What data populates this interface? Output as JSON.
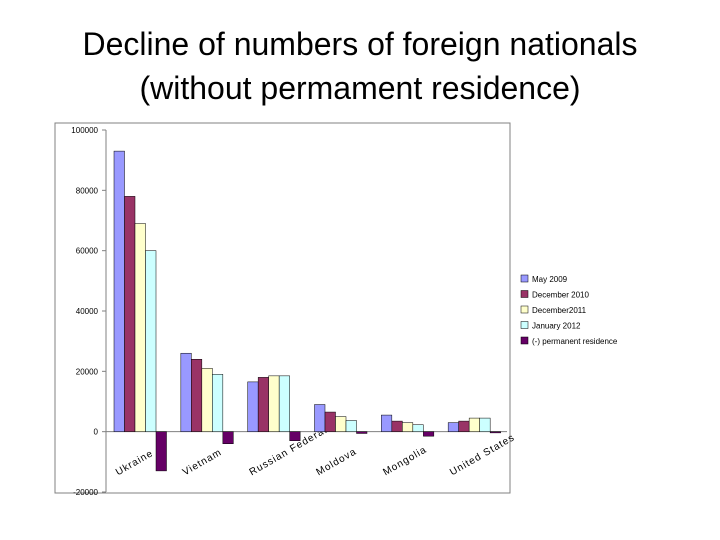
{
  "slide": {
    "title_line1": "Decline of numbers of foreign nationals",
    "title_line2": "(without permament residence)"
  },
  "chart_data": {
    "type": "bar",
    "title": "",
    "xlabel": "",
    "ylabel": "",
    "ylim": [
      -20000,
      100000
    ],
    "yticks": [
      100000,
      80000,
      60000,
      40000,
      20000,
      0,
      -20000
    ],
    "grid": false,
    "legend_position": "right",
    "categories": [
      "Ukraine",
      "Vietnam",
      "Russian Federation",
      "Moldova",
      "Mongolia",
      "United States"
    ],
    "series": [
      {
        "name": "May 2009",
        "color": "#9999ff",
        "values": [
          93000,
          26000,
          16500,
          9000,
          5500,
          3000
        ]
      },
      {
        "name": "December 2010",
        "color": "#993366",
        "values": [
          78000,
          24000,
          18000,
          6500,
          3500,
          3500
        ]
      },
      {
        "name": "December2011",
        "color": "#ffffcc",
        "values": [
          69000,
          21000,
          18500,
          5000,
          3000,
          4500
        ]
      },
      {
        "name": "January 2012",
        "color": "#ccffff",
        "values": [
          60000,
          19000,
          18500,
          3700,
          2300,
          4500
        ]
      },
      {
        "name": "(-) permanent residence",
        "color": "#660066",
        "values": [
          -13000,
          -4000,
          -3000,
          -600,
          -1500,
          -400
        ]
      }
    ]
  }
}
